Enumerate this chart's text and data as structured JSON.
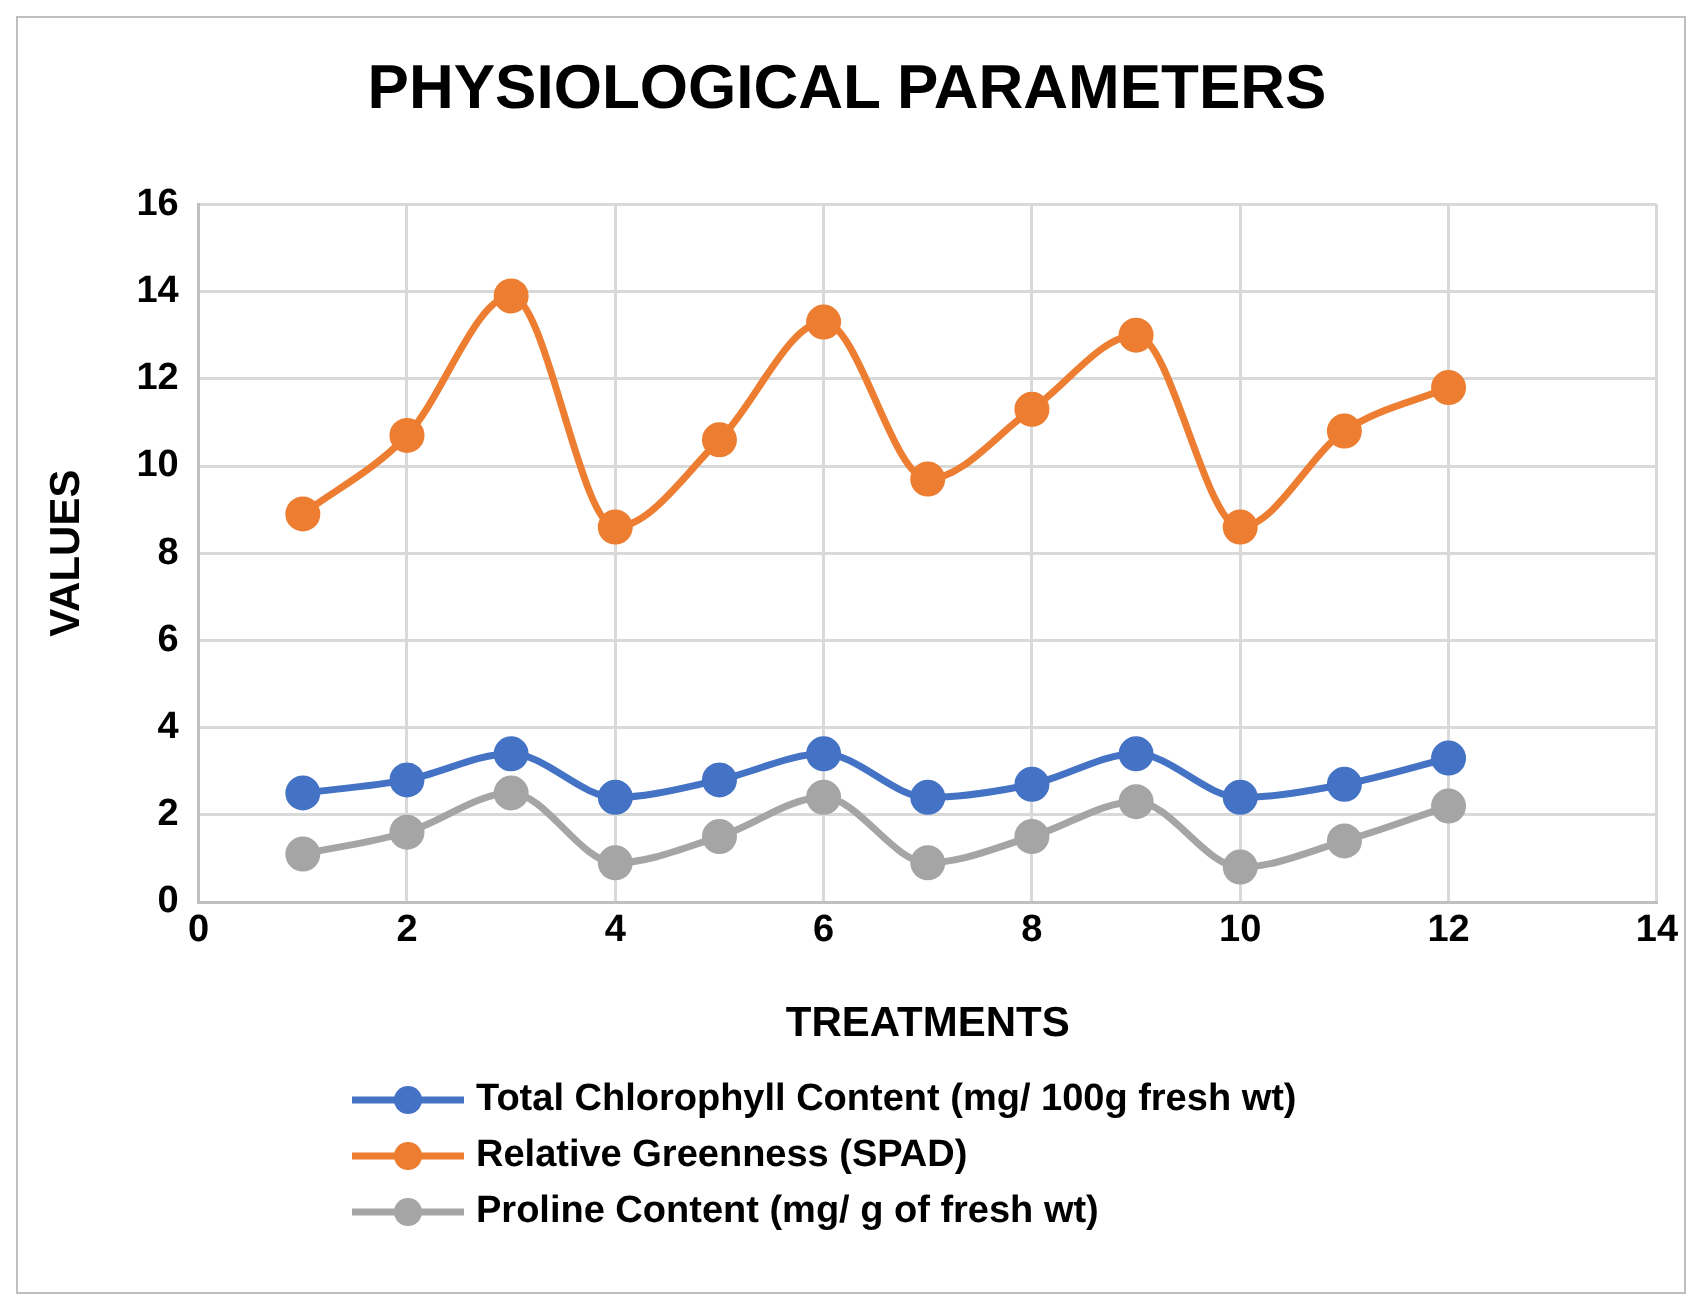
{
  "chart_data": {
    "type": "line",
    "title": "PHYSIOLOGICAL PARAMETERS",
    "xlabel": "TREATMENTS",
    "ylabel": "VALUES",
    "x": [
      1,
      2,
      3,
      4,
      5,
      6,
      7,
      8,
      9,
      10,
      11,
      12
    ],
    "series": [
      {
        "name": "Total Chlorophyll Content (mg/ 100g fresh wt)",
        "color": "#4472c4",
        "values": [
          2.5,
          2.8,
          3.4,
          2.4,
          2.8,
          3.4,
          2.4,
          2.7,
          3.4,
          2.4,
          2.7,
          3.3
        ]
      },
      {
        "name": "Relative Greenness (SPAD)",
        "color": "#ed7d31",
        "values": [
          8.9,
          10.7,
          13.9,
          8.6,
          10.6,
          13.3,
          9.7,
          11.3,
          13.0,
          8.6,
          10.8,
          11.8
        ]
      },
      {
        "name": "Proline Content (mg/ g of fresh wt)",
        "color": "#a5a5a5",
        "values": [
          1.1,
          1.6,
          2.5,
          0.9,
          1.5,
          2.4,
          0.9,
          1.5,
          2.3,
          0.8,
          1.4,
          2.2
        ]
      }
    ],
    "xlim": [
      0,
      14
    ],
    "xticks": [
      0,
      2,
      4,
      6,
      8,
      10,
      12,
      14
    ],
    "ylim": [
      0,
      16
    ],
    "yticks": [
      0,
      2,
      4,
      6,
      8,
      10,
      12,
      14,
      16
    ],
    "grid": true,
    "legend": "bottom",
    "marker": "circle",
    "line_style": "solid"
  }
}
